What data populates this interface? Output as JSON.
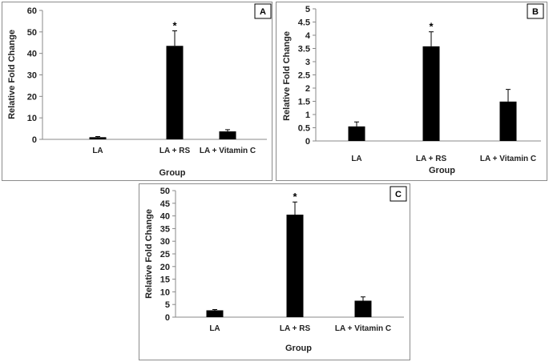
{
  "chart_data": [
    {
      "panel": "A",
      "type": "bar",
      "categories": [
        "LA",
        "LA + RS",
        "LA + Vitamin C"
      ],
      "values": [
        1.0,
        43.5,
        3.7
      ],
      "errors": [
        0.3,
        7.0,
        0.8
      ],
      "significance": [
        "",
        "*",
        ""
      ],
      "yticks": [
        0,
        10,
        20,
        30,
        40,
        50,
        60
      ],
      "ylim": [
        0,
        60
      ],
      "ylabel": "Relative Fold Change",
      "xlabel": "Group"
    },
    {
      "panel": "B",
      "type": "bar",
      "categories": [
        "LA",
        "LA + RS",
        "LA + Vitamin C"
      ],
      "values": [
        0.55,
        3.58,
        1.49
      ],
      "errors": [
        0.17,
        0.55,
        0.46
      ],
      "significance": [
        "",
        "*",
        ""
      ],
      "yticks": [
        0,
        0.5,
        1,
        1.5,
        2,
        2.5,
        3,
        3.5,
        4,
        4.5,
        5
      ],
      "ylim": [
        0,
        5
      ],
      "ylabel": "Relative Fold Change",
      "xlabel": "Group"
    },
    {
      "panel": "C",
      "type": "bar",
      "categories": [
        "LA",
        "LA + RS",
        "LA + Vitamin C"
      ],
      "values": [
        2.7,
        40.5,
        6.5
      ],
      "errors": [
        0.3,
        5.0,
        1.5
      ],
      "significance": [
        "",
        "*",
        ""
      ],
      "yticks": [
        0,
        5,
        10,
        15,
        20,
        25,
        30,
        35,
        40,
        45,
        50
      ],
      "ylim": [
        0,
        50
      ],
      "ylabel": "Relative Fold Change",
      "xlabel": "Group"
    }
  ]
}
